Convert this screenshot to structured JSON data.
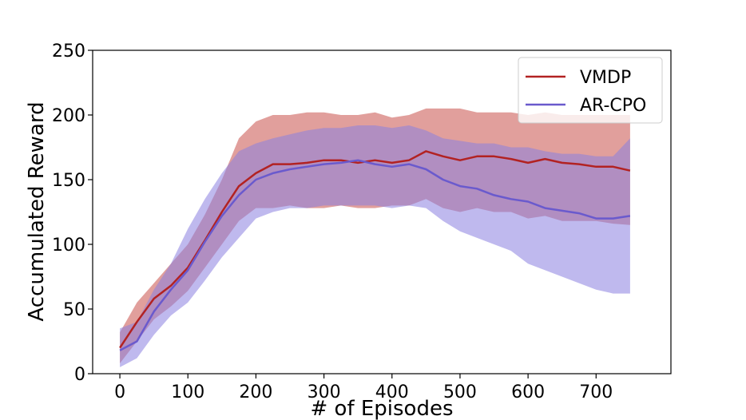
{
  "chart_data": {
    "type": "line",
    "title": "",
    "xlabel": "# of Episodes",
    "ylabel": "Accumulated Reward",
    "xlim": [
      -40,
      810
    ],
    "ylim": [
      0,
      250
    ],
    "xticks": [
      0,
      100,
      200,
      300,
      400,
      500,
      600,
      700
    ],
    "yticks": [
      0,
      50,
      100,
      150,
      200,
      250
    ],
    "grid": false,
    "legend": {
      "position": "top-right",
      "entries": [
        "VMDP",
        "AR-CPO"
      ]
    },
    "x": [
      0,
      25,
      50,
      75,
      100,
      125,
      150,
      175,
      200,
      225,
      250,
      275,
      300,
      325,
      350,
      375,
      400,
      425,
      450,
      475,
      500,
      525,
      550,
      575,
      600,
      625,
      650,
      675,
      700,
      725,
      750
    ],
    "series": [
      {
        "name": "VMDP",
        "color": "#b22222",
        "band_color": "#c8504a",
        "values": [
          20,
          40,
          58,
          68,
          82,
          103,
          125,
          145,
          155,
          162,
          162,
          163,
          165,
          165,
          163,
          165,
          163,
          165,
          172,
          168,
          165,
          168,
          168,
          166,
          163,
          166,
          163,
          162,
          160,
          160,
          157
        ],
        "lower": [
          8,
          25,
          42,
          52,
          64,
          82,
          100,
          118,
          128,
          128,
          130,
          128,
          128,
          130,
          128,
          128,
          130,
          130,
          135,
          128,
          125,
          128,
          125,
          125,
          120,
          122,
          118,
          118,
          118,
          116,
          115
        ],
        "upper": [
          32,
          55,
          70,
          85,
          100,
          123,
          150,
          182,
          195,
          200,
          200,
          202,
          202,
          200,
          200,
          202,
          198,
          200,
          205,
          205,
          205,
          202,
          202,
          202,
          200,
          202,
          200,
          200,
          200,
          200,
          200
        ]
      },
      {
        "name": "AR-CPO",
        "color": "#6a5acd",
        "band_color": "#8a80e0",
        "values": [
          18,
          25,
          48,
          65,
          80,
          102,
          122,
          138,
          150,
          155,
          158,
          160,
          162,
          163,
          165,
          162,
          160,
          162,
          158,
          150,
          145,
          143,
          138,
          135,
          133,
          128,
          126,
          124,
          120,
          120,
          122
        ],
        "lower": [
          5,
          12,
          30,
          45,
          55,
          72,
          90,
          105,
          120,
          125,
          128,
          128,
          130,
          130,
          130,
          130,
          128,
          130,
          128,
          118,
          110,
          105,
          100,
          95,
          85,
          80,
          75,
          70,
          65,
          62,
          62
        ],
        "upper": [
          35,
          40,
          65,
          85,
          112,
          135,
          155,
          172,
          178,
          182,
          185,
          188,
          190,
          190,
          192,
          192,
          190,
          192,
          188,
          182,
          180,
          178,
          178,
          175,
          175,
          172,
          170,
          170,
          168,
          168,
          182
        ]
      }
    ]
  }
}
